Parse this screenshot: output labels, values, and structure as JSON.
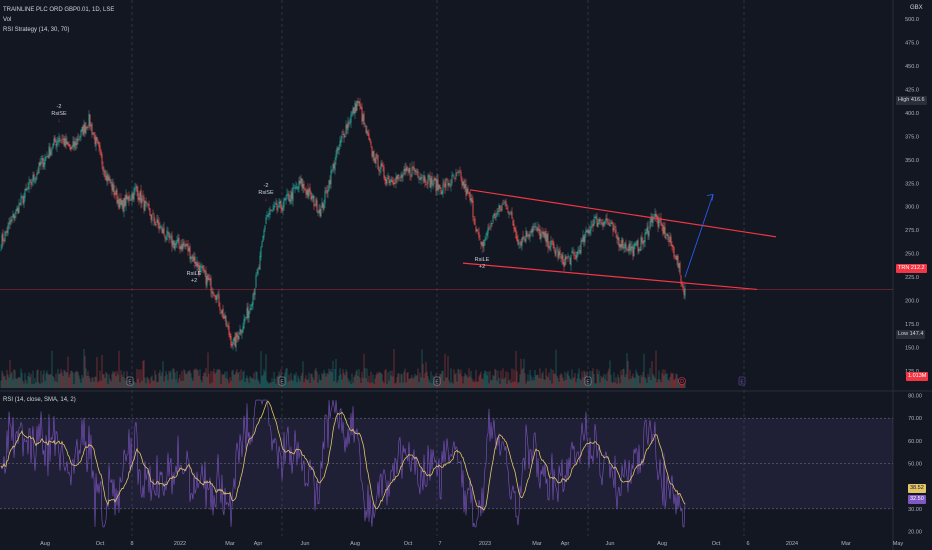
{
  "header": {
    "symbol": "TRAINLINE PLC ORD GBP0.01, 1D, LSE",
    "volume_label": "Vol",
    "strategy_label": "RSI Strategy (14, 30, 70)",
    "currency": "GBX"
  },
  "rsi_panel": {
    "label": "RSI (14, close, SMA, 14, 2)"
  },
  "price_tags": {
    "high_label": "High",
    "high_value": "416.6",
    "current_symbol": "TRN",
    "current_value": "212.2",
    "low_label": "Low",
    "low_value": "147.4",
    "volume_value": "1.013M",
    "rsi_value_a": "38.52",
    "rsi_value_b": "32.50"
  },
  "signals": [
    {
      "text1": "-2",
      "text2": "RsiSE",
      "kind": "short",
      "date_index": 58
    },
    {
      "text1": "RsiLE",
      "text2": "+2",
      "kind": "long",
      "date_index": 193
    },
    {
      "text1": "-2",
      "text2": "RsiSE",
      "kind": "short",
      "date_index": 265
    },
    {
      "text1": "RsiLE",
      "text2": "+2",
      "kind": "long",
      "date_index": 481
    }
  ],
  "earnings_markers": {
    "label": "E",
    "upcoming_label": "E",
    "dividend_label": "D"
  },
  "colors": {
    "up": "#26a69a",
    "down": "#ef5350",
    "rsi_line": "#7e57c2",
    "rsi_ma": "#e3c66a",
    "rsi_band": "#7e57c2",
    "trendline": "#f23645",
    "projection": "#2962ff",
    "background": "#131722"
  },
  "chart_data": {
    "type": "candlestick",
    "title": "TRAINLINE PLC ORD GBP0.01, 1D, LSE",
    "price_axis": {
      "ticks": [
        125,
        150,
        175,
        200,
        225,
        250,
        275,
        300,
        325,
        350,
        375,
        400,
        425,
        450,
        475,
        500
      ],
      "tick_labels": [
        "125.0",
        "150.0",
        "175.0",
        "200.0",
        "225.0",
        "250.0",
        "275.0",
        "300.0",
        "325.0",
        "350.0",
        "375.0",
        "400.0",
        "425.0",
        "450.0",
        "475.0",
        "500.0"
      ],
      "range": [
        105,
        520
      ]
    },
    "time_axis": {
      "labels": [
        "Aug",
        "Oct",
        "8",
        "2022",
        "Mar",
        "Apr",
        "Jun",
        "Aug",
        "Oct",
        "7",
        "2023",
        "Mar",
        "Apr",
        "Jun",
        "Aug",
        "Oct",
        "6",
        "2024",
        "Mar",
        "May"
      ]
    },
    "price_keypoints": [
      [
        0,
        262
      ],
      [
        20,
        305
      ],
      [
        40,
        345
      ],
      [
        58,
        375
      ],
      [
        70,
        360
      ],
      [
        88,
        392
      ],
      [
        104,
        338
      ],
      [
        120,
        300
      ],
      [
        135,
        318
      ],
      [
        150,
        290
      ],
      [
        170,
        262
      ],
      [
        185,
        258
      ],
      [
        200,
        232
      ],
      [
        215,
        208
      ],
      [
        232,
        152
      ],
      [
        248,
        190
      ],
      [
        258,
        235
      ],
      [
        265,
        290
      ],
      [
        280,
        300
      ],
      [
        300,
        325
      ],
      [
        320,
        295
      ],
      [
        334,
        350
      ],
      [
        345,
        385
      ],
      [
        357,
        412
      ],
      [
        370,
        360
      ],
      [
        385,
        330
      ],
      [
        398,
        330
      ],
      [
        412,
        340
      ],
      [
        425,
        330
      ],
      [
        440,
        320
      ],
      [
        458,
        333
      ],
      [
        470,
        305
      ],
      [
        480,
        255
      ],
      [
        492,
        288
      ],
      [
        505,
        305
      ],
      [
        518,
        262
      ],
      [
        532,
        278
      ],
      [
        548,
        262
      ],
      [
        562,
        242
      ],
      [
        575,
        248
      ],
      [
        592,
        285
      ],
      [
        605,
        286
      ],
      [
        618,
        264
      ],
      [
        632,
        254
      ],
      [
        643,
        264
      ],
      [
        652,
        292
      ],
      [
        665,
        270
      ],
      [
        675,
        248
      ],
      [
        682,
        213
      ]
    ],
    "trendlines": [
      {
        "name": "upper",
        "x": [
          470,
          776
        ],
        "y": [
          318,
          268
        ]
      },
      {
        "name": "lower",
        "x": [
          463,
          757
        ],
        "y": [
          240,
          212
        ]
      }
    ],
    "projection": {
      "x": [
        685,
        713
      ],
      "y": [
        225,
        313
      ]
    },
    "horizontal_line": 212.2,
    "high": 416.6,
    "low": 147.4,
    "last": 212.2,
    "rsi": {
      "ticks": [
        20,
        30,
        40,
        50,
        60,
        70,
        80
      ],
      "tick_labels": [
        "20.00",
        "30.00",
        "40.00",
        "50.00",
        "60.00",
        "70.00",
        "80.00"
      ],
      "range": [
        18,
        82
      ],
      "upper_band": 70,
      "lower_band": 30,
      "middle": 50,
      "last_rsi": 38.52,
      "last_ma": 32.5
    },
    "bars_count": 685
  }
}
